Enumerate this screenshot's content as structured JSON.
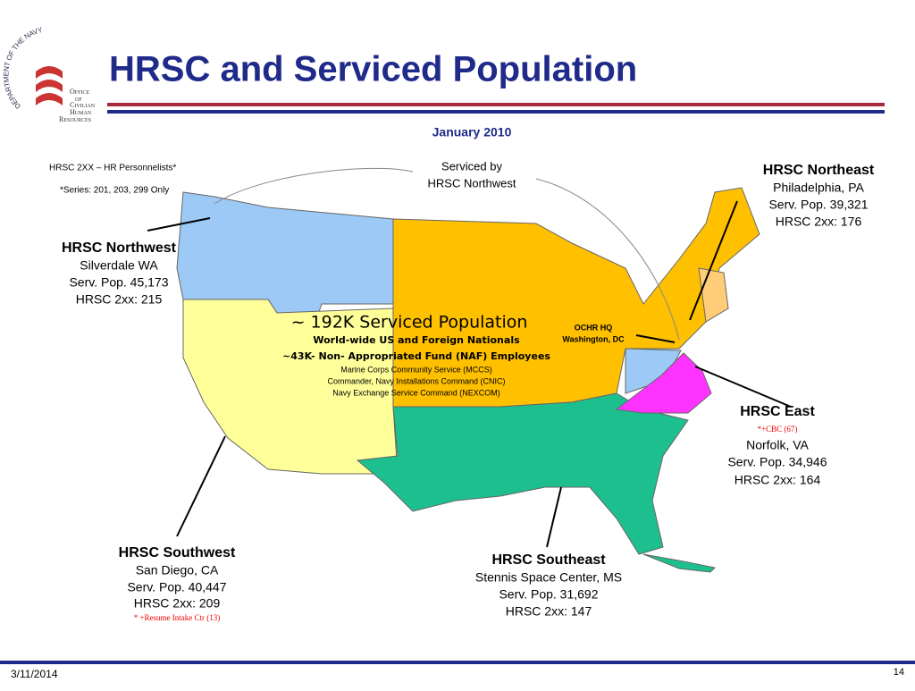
{
  "logo": {
    "arc": "DEPARTMENT OF THE NAVY",
    "lines": [
      "Office",
      "of",
      "Civilian",
      "Human",
      "Resources"
    ]
  },
  "header": {
    "title": "HRSC and Serviced Population",
    "subtitle": "January 2010"
  },
  "notes": {
    "personnelists": "HRSC 2XX – HR Personnelists*",
    "series": "*Series: 201, 203, 299 Only"
  },
  "callout": [
    "Serviced by",
    "HRSC Northwest"
  ],
  "center": {
    "headline": "~ 192K Serviced Population",
    "sub1": "World-wide US and Foreign Nationals",
    "sub2": "~43K- Non- Appropriated Fund (NAF) Employees",
    "items": [
      "Marine Corps Community Service (MCCS)",
      "Commander, Navy Installations Command (CNIC)",
      "Navy Exchange Service Command (NEXCOM)"
    ]
  },
  "hq": [
    "OCHR HQ",
    "Washington, DC"
  ],
  "regions": [
    {
      "name": "HRSC Northwest",
      "lines": [
        "Silverdale WA",
        "Serv. Pop. 45,173",
        "HRSC 2xx:  215"
      ]
    },
    {
      "name": "HRSC Northeast",
      "lines": [
        "Philadelphia, PA",
        "Serv. Pop. 39,321",
        "HRSC 2xx:  176"
      ]
    },
    {
      "name": "HRSC East",
      "note": "*+CBC (67)",
      "lines": [
        "Norfolk, VA",
        "Serv. Pop. 34,946",
        "HRSC 2xx:  164"
      ]
    },
    {
      "name": "HRSC Southwest",
      "lines": [
        "San Diego, CA",
        "Serv. Pop. 40,447",
        "HRSC 2xx:  209"
      ],
      "note": "* +Resume Intake Ctr (13)"
    },
    {
      "name": "HRSC Southeast",
      "lines": [
        "Stennis Space Center, MS",
        "Serv. Pop. 31,692",
        "HRSC 2xx:  147"
      ]
    }
  ],
  "footer": {
    "date": "3/11/2014",
    "page": "14"
  }
}
